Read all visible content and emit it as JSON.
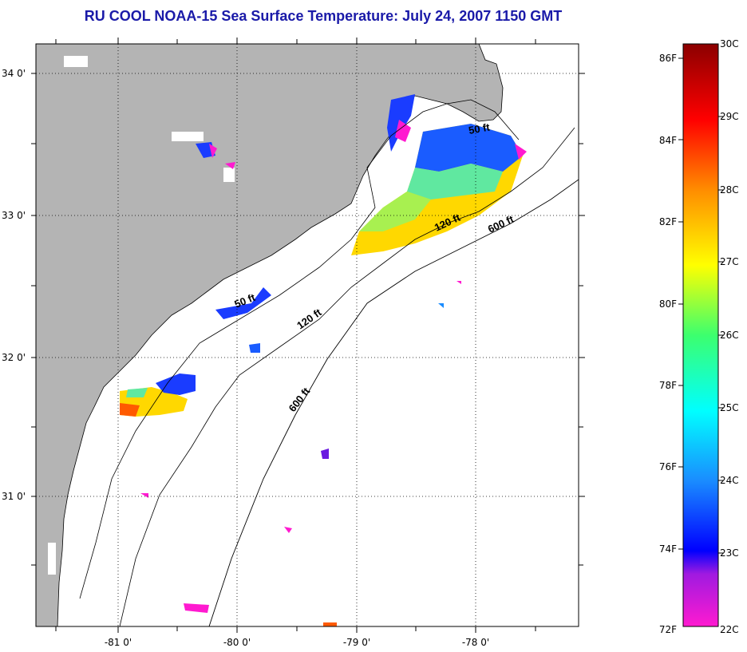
{
  "title": "RU COOL  NOAA-15  Sea Surface Temperature:  July 24, 2007 1150 GMT",
  "map": {
    "lon_ticks": [
      "-81 0'",
      "-80 0'",
      "-79 0'",
      "-78 0'"
    ],
    "lat_ticks": [
      "34 0'",
      "33 0'",
      "32 0'",
      "31 0'"
    ],
    "contour_labels": [
      {
        "text": "50 ft",
        "which": "upper"
      },
      {
        "text": "120 ft",
        "which": "upper"
      },
      {
        "text": "600 ft",
        "which": "upper"
      },
      {
        "text": "50 ft",
        "which": "lower"
      },
      {
        "text": "120 ft",
        "which": "lower"
      },
      {
        "text": "600 ft",
        "which": "lower"
      }
    ],
    "colors": {
      "land": "#b4b4b4",
      "ocean": "#ffffff",
      "grid": "#000000"
    }
  },
  "colorbar": {
    "fahrenheit_labels": [
      "86F",
      "84F",
      "82F",
      "80F",
      "78F",
      "76F",
      "74F",
      "72F"
    ],
    "celsius_labels": [
      "30C",
      "29C",
      "28C",
      "27C",
      "26C",
      "25C",
      "24C",
      "23C",
      "22C"
    ],
    "range_c": [
      22,
      30
    ]
  }
}
